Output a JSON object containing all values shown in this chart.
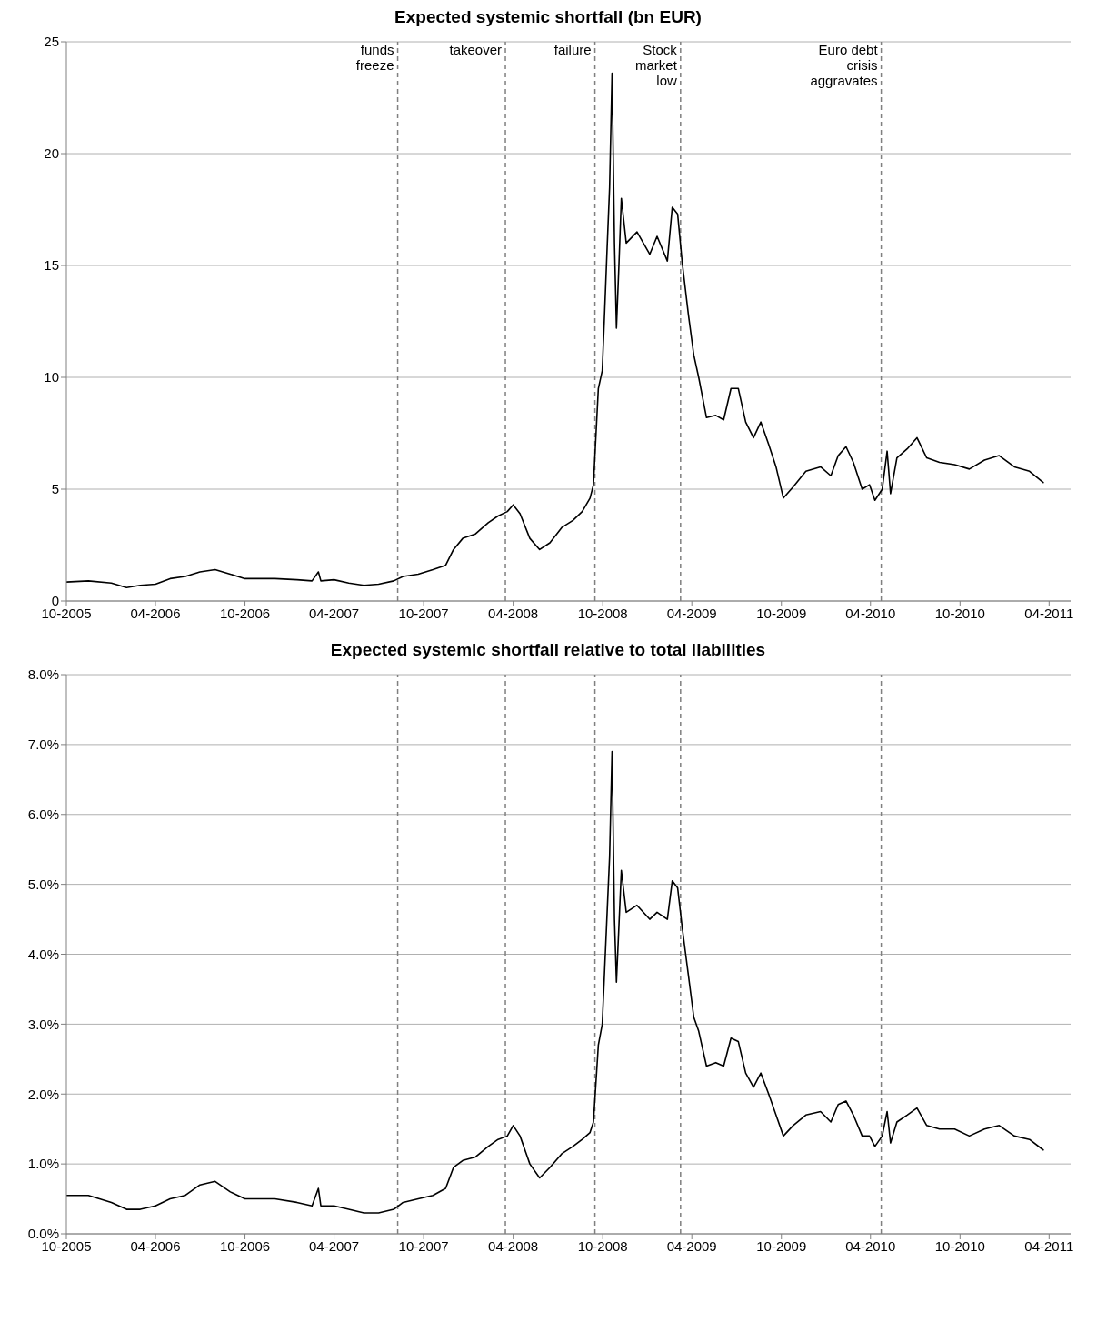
{
  "chart_data": [
    {
      "type": "line",
      "title": "Expected systemic shortfall (bn EUR)",
      "x": [
        "2005-10-01",
        "2005-11-15",
        "2006-01-01",
        "2006-02-01",
        "2006-03-01",
        "2006-04-01",
        "2006-05-01",
        "2006-06-01",
        "2006-07-01",
        "2006-08-01",
        "2006-09-01",
        "2006-10-01",
        "2006-12-01",
        "2007-01-15",
        "2007-02-15",
        "2007-02-28",
        "2007-03-05",
        "2007-04-01",
        "2007-05-01",
        "2007-06-01",
        "2007-07-01",
        "2007-08-01",
        "2007-08-20",
        "2007-09-20",
        "2007-10-20",
        "2007-11-15",
        "2007-12-01",
        "2007-12-20",
        "2008-01-15",
        "2008-02-10",
        "2008-03-01",
        "2008-03-20",
        "2008-04-01",
        "2008-04-15",
        "2008-05-05",
        "2008-05-25",
        "2008-06-15",
        "2008-07-10",
        "2008-08-01",
        "2008-08-20",
        "2008-09-05",
        "2008-09-12",
        "2008-09-22",
        "2008-09-30",
        "2008-10-05",
        "2008-10-10",
        "2008-10-15",
        "2008-10-20",
        "2008-10-25",
        "2008-10-29",
        "2008-11-03",
        "2008-11-08",
        "2008-11-18",
        "2008-12-10",
        "2009-01-05",
        "2009-01-20",
        "2009-02-10",
        "2009-02-20",
        "2009-03-03",
        "2009-03-12",
        "2009-03-25",
        "2009-04-05",
        "2009-04-15",
        "2009-05-01",
        "2009-05-20",
        "2009-06-05",
        "2009-06-20",
        "2009-07-05",
        "2009-07-20",
        "2009-08-05",
        "2009-08-20",
        "2009-09-05",
        "2009-09-20",
        "2009-10-05",
        "2009-10-25",
        "2009-11-20",
        "2009-12-20",
        "2010-01-10",
        "2010-01-25",
        "2010-02-10",
        "2010-02-25",
        "2010-03-15",
        "2010-03-30",
        "2010-04-10",
        "2010-04-25",
        "2010-05-05",
        "2010-05-12",
        "2010-05-25",
        "2010-06-15",
        "2010-07-05",
        "2010-07-25",
        "2010-08-20",
        "2010-09-20",
        "2010-10-20",
        "2010-11-20",
        "2010-12-20",
        "2011-01-20",
        "2011-02-20",
        "2011-03-20"
      ],
      "series": [
        {
          "color": "#000000",
          "values": [
            0.85,
            0.9,
            0.8,
            0.6,
            0.7,
            0.75,
            1.0,
            1.1,
            1.3,
            1.4,
            1.2,
            1.0,
            1.0,
            0.95,
            0.9,
            1.3,
            0.9,
            0.95,
            0.8,
            0.7,
            0.75,
            0.9,
            1.1,
            1.2,
            1.4,
            1.6,
            2.3,
            2.8,
            3.0,
            3.5,
            3.8,
            4.0,
            4.3,
            3.9,
            2.8,
            2.3,
            2.6,
            3.3,
            3.6,
            4.0,
            4.6,
            5.2,
            9.5,
            10.3,
            13.0,
            15.8,
            18.5,
            23.6,
            16.0,
            12.2,
            15.0,
            18.0,
            16.0,
            16.5,
            15.5,
            16.3,
            15.2,
            17.6,
            17.3,
            15.2,
            12.8,
            11.0,
            10.0,
            8.2,
            8.3,
            8.1,
            9.5,
            9.5,
            8.0,
            7.3,
            8.0,
            7.0,
            6.0,
            4.6,
            5.1,
            5.8,
            6.0,
            5.6,
            6.5,
            6.9,
            6.2,
            5.0,
            5.2,
            4.5,
            5.0,
            6.7,
            4.8,
            6.4,
            6.8,
            7.3,
            6.4,
            6.2,
            6.1,
            5.9,
            6.3,
            6.5,
            6.0,
            5.8,
            5.3
          ]
        }
      ],
      "xlim": [
        "2005-10-01",
        "2011-05-15"
      ],
      "xticks": [
        {
          "value": "2005-10-01",
          "label": "10-2005"
        },
        {
          "value": "2006-04-01",
          "label": "04-2006"
        },
        {
          "value": "2006-10-01",
          "label": "10-2006"
        },
        {
          "value": "2007-04-01",
          "label": "04-2007"
        },
        {
          "value": "2007-10-01",
          "label": "10-2007"
        },
        {
          "value": "2008-04-01",
          "label": "04-2008"
        },
        {
          "value": "2008-10-01",
          "label": "10-2008"
        },
        {
          "value": "2009-04-01",
          "label": "04-2009"
        },
        {
          "value": "2009-10-01",
          "label": "10-2009"
        },
        {
          "value": "2010-04-01",
          "label": "04-2010"
        },
        {
          "value": "2010-10-01",
          "label": "10-2010"
        },
        {
          "value": "2011-04-01",
          "label": "04-2011"
        }
      ],
      "ylim": [
        0,
        25
      ],
      "yticks": [
        0,
        5,
        10,
        15,
        20,
        25
      ],
      "grid": "y",
      "legend": false,
      "line_style": "solid",
      "marker": "none",
      "ref_lines": [
        {
          "axis": "x",
          "value": "2007-08-09",
          "label": "funds freeze",
          "color": "#808080",
          "line_style": "dashed"
        },
        {
          "axis": "x",
          "value": "2008-03-16",
          "label": "takeover",
          "color": "#808080",
          "line_style": "dashed"
        },
        {
          "axis": "x",
          "value": "2008-09-15",
          "label": "failure",
          "color": "#808080",
          "line_style": "dashed"
        },
        {
          "axis": "x",
          "value": "2009-03-09",
          "label": "Stock market low",
          "color": "#808080",
          "line_style": "dashed"
        },
        {
          "axis": "x",
          "value": "2010-04-23",
          "label": "Euro debt crisis aggravates",
          "color": "#808080",
          "line_style": "dashed"
        }
      ]
    },
    {
      "type": "line",
      "title": "Expected systemic shortfall relative to total liabilities",
      "x": [
        "2005-10-01",
        "2005-11-15",
        "2006-01-01",
        "2006-02-01",
        "2006-03-01",
        "2006-04-01",
        "2006-05-01",
        "2006-06-01",
        "2006-07-01",
        "2006-08-01",
        "2006-09-01",
        "2006-10-01",
        "2006-12-01",
        "2007-01-15",
        "2007-02-15",
        "2007-02-28",
        "2007-03-05",
        "2007-04-01",
        "2007-05-01",
        "2007-06-01",
        "2007-07-01",
        "2007-08-01",
        "2007-08-20",
        "2007-09-20",
        "2007-10-20",
        "2007-11-15",
        "2007-12-01",
        "2007-12-20",
        "2008-01-15",
        "2008-02-10",
        "2008-03-01",
        "2008-03-20",
        "2008-04-01",
        "2008-04-15",
        "2008-05-05",
        "2008-05-25",
        "2008-06-15",
        "2008-07-10",
        "2008-08-01",
        "2008-08-20",
        "2008-09-05",
        "2008-09-12",
        "2008-09-22",
        "2008-09-30",
        "2008-10-05",
        "2008-10-10",
        "2008-10-15",
        "2008-10-20",
        "2008-10-25",
        "2008-10-29",
        "2008-11-03",
        "2008-11-08",
        "2008-11-18",
        "2008-12-10",
        "2009-01-05",
        "2009-01-20",
        "2009-02-10",
        "2009-02-20",
        "2009-03-03",
        "2009-03-12",
        "2009-03-25",
        "2009-04-05",
        "2009-04-15",
        "2009-05-01",
        "2009-05-20",
        "2009-06-05",
        "2009-06-20",
        "2009-07-05",
        "2009-07-20",
        "2009-08-05",
        "2009-08-20",
        "2009-09-05",
        "2009-09-20",
        "2009-10-05",
        "2009-10-25",
        "2009-11-20",
        "2009-12-20",
        "2010-01-10",
        "2010-01-25",
        "2010-02-10",
        "2010-02-25",
        "2010-03-15",
        "2010-03-30",
        "2010-04-10",
        "2010-04-25",
        "2010-05-05",
        "2010-05-12",
        "2010-05-25",
        "2010-06-15",
        "2010-07-05",
        "2010-07-25",
        "2010-08-20",
        "2010-09-20",
        "2010-10-20",
        "2010-11-20",
        "2010-12-20",
        "2011-01-20",
        "2011-02-20",
        "2011-03-20"
      ],
      "series": [
        {
          "color": "#000000",
          "values": [
            0.55,
            0.55,
            0.45,
            0.35,
            0.35,
            0.4,
            0.5,
            0.55,
            0.7,
            0.75,
            0.6,
            0.5,
            0.5,
            0.45,
            0.4,
            0.65,
            0.4,
            0.4,
            0.35,
            0.3,
            0.3,
            0.35,
            0.45,
            0.5,
            0.55,
            0.65,
            0.95,
            1.05,
            1.1,
            1.25,
            1.35,
            1.4,
            1.55,
            1.4,
            1.0,
            0.8,
            0.95,
            1.15,
            1.25,
            1.35,
            1.45,
            1.6,
            2.7,
            3.0,
            3.8,
            4.6,
            5.4,
            6.9,
            4.5,
            3.6,
            4.4,
            5.2,
            4.6,
            4.7,
            4.5,
            4.6,
            4.5,
            5.05,
            4.95,
            4.4,
            3.7,
            3.1,
            2.9,
            2.4,
            2.45,
            2.4,
            2.8,
            2.75,
            2.3,
            2.1,
            2.3,
            2.0,
            1.7,
            1.4,
            1.55,
            1.7,
            1.75,
            1.6,
            1.85,
            1.9,
            1.7,
            1.4,
            1.4,
            1.25,
            1.4,
            1.75,
            1.3,
            1.6,
            1.7,
            1.8,
            1.55,
            1.5,
            1.5,
            1.4,
            1.5,
            1.55,
            1.4,
            1.35,
            1.2
          ]
        }
      ],
      "xlim": [
        "2005-10-01",
        "2011-05-15"
      ],
      "xticks": [
        {
          "value": "2005-10-01",
          "label": "10-2005"
        },
        {
          "value": "2006-04-01",
          "label": "04-2006"
        },
        {
          "value": "2006-10-01",
          "label": "10-2006"
        },
        {
          "value": "2007-04-01",
          "label": "04-2007"
        },
        {
          "value": "2007-10-01",
          "label": "10-2007"
        },
        {
          "value": "2008-04-01",
          "label": "04-2008"
        },
        {
          "value": "2008-10-01",
          "label": "10-2008"
        },
        {
          "value": "2009-04-01",
          "label": "04-2009"
        },
        {
          "value": "2009-10-01",
          "label": "10-2009"
        },
        {
          "value": "2010-04-01",
          "label": "04-2010"
        },
        {
          "value": "2010-10-01",
          "label": "10-2010"
        },
        {
          "value": "2011-04-01",
          "label": "04-2011"
        }
      ],
      "ylim": [
        0,
        8
      ],
      "yticks": [
        {
          "value": 0,
          "label": "0.0%"
        },
        {
          "value": 1,
          "label": "1.0%"
        },
        {
          "value": 2,
          "label": "2.0%"
        },
        {
          "value": 3,
          "label": "3.0%"
        },
        {
          "value": 4,
          "label": "4.0%"
        },
        {
          "value": 5,
          "label": "5.0%"
        },
        {
          "value": 6,
          "label": "6.0%"
        },
        {
          "value": 7,
          "label": "7.0%"
        },
        {
          "value": 8,
          "label": "8.0%"
        }
      ],
      "grid": "y",
      "legend": false,
      "line_style": "solid",
      "marker": "none",
      "ref_lines": [
        {
          "axis": "x",
          "value": "2007-08-09",
          "color": "#808080",
          "line_style": "dashed"
        },
        {
          "axis": "x",
          "value": "2008-03-16",
          "color": "#808080",
          "line_style": "dashed"
        },
        {
          "axis": "x",
          "value": "2008-09-15",
          "color": "#808080",
          "line_style": "dashed"
        },
        {
          "axis": "x",
          "value": "2009-03-09",
          "color": "#808080",
          "line_style": "dashed"
        },
        {
          "axis": "x",
          "value": "2010-04-23",
          "color": "#808080",
          "line_style": "dashed"
        }
      ]
    }
  ]
}
